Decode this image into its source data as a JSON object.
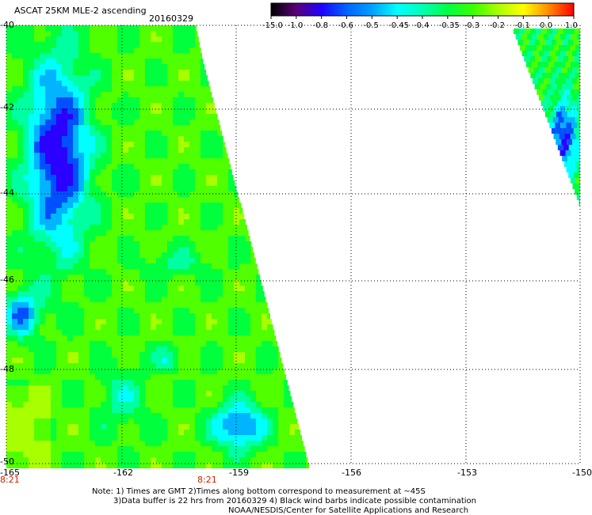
{
  "header": {
    "title": "ASCAT 25KM MLE-2 ascending",
    "date": "20160329"
  },
  "colorbar": {
    "labels": [
      "-15.0",
      "-1.0",
      "-0.8",
      "-0.6",
      "-0.5",
      "-0.45",
      "-0.4",
      "-0.35",
      "-0.3",
      "-0.2",
      "-0.1",
      "0.0",
      "1.0"
    ],
    "colors": [
      "#000000",
      "#5a0078",
      "#1e00ff",
      "#0064ff",
      "#00a0ff",
      "#00ffff",
      "#00ffb4",
      "#00ff46",
      "#3cff00",
      "#aaff00",
      "#ffff00",
      "#ff8c00",
      "#ff0000"
    ]
  },
  "map": {
    "lat_labels": [
      "-40",
      "-42",
      "-44",
      "-46",
      "-48",
      "-50"
    ],
    "lon_labels": [
      "-165",
      "-162",
      "-159",
      "-156",
      "-153",
      "-150"
    ],
    "lon_range": [
      -165,
      -150
    ],
    "lat_range": [
      -40,
      -50
    ],
    "time_labels": [
      "8:21",
      "8:21"
    ]
  },
  "notes": {
    "line1": "Note: 1) Times are GMT 2)Times along bottom correspond to measurement at ~45S",
    "line2": "3)Data buffer is 22 hrs from 20160329 4) Black wind barbs indicate possible contamination",
    "line3": "NOAA/NESDIS/Center for Satellite Applications and Research"
  }
}
